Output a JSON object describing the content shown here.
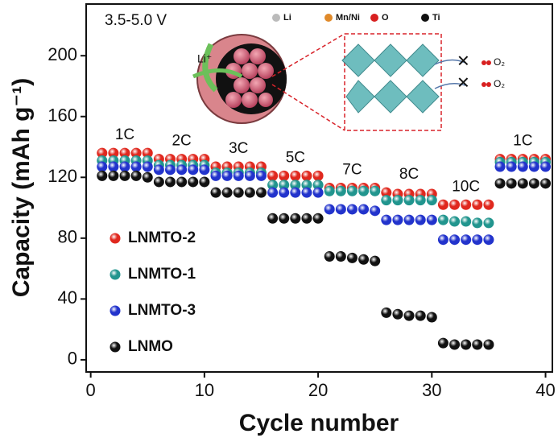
{
  "chart_data": {
    "type": "scatter",
    "annotation": "3.5-5.0 V",
    "x_label": "Cycle number",
    "y_label": "Capacity (mAh g⁻¹)",
    "inset_labels": {
      "elements": [
        "Li",
        "Mn/Ni",
        "O",
        "Ti"
      ],
      "ion": "Li⁺",
      "gas": "O₂"
    },
    "rate_labels": [
      "1C",
      "2C",
      "3C",
      "5C",
      "7C",
      "8C",
      "10C",
      "1C"
    ],
    "x": [
      1,
      2,
      3,
      4,
      5,
      6,
      7,
      8,
      9,
      10,
      11,
      12,
      13,
      14,
      15,
      16,
      17,
      18,
      19,
      20,
      21,
      22,
      23,
      24,
      25,
      26,
      27,
      28,
      29,
      30,
      31,
      32,
      33,
      34,
      35,
      36,
      37,
      38,
      39,
      40
    ],
    "xlim": [
      -0.4,
      40.6
    ],
    "xticks": [
      0,
      10,
      20,
      30,
      40
    ],
    "ylim": [
      -8,
      234
    ],
    "yticks": [
      0,
      40,
      80,
      120,
      160,
      200
    ],
    "legend": "left",
    "series": [
      {
        "name": "LNMTO-2",
        "color": "#e0281e",
        "values": [
          136,
          136,
          136,
          136,
          136,
          132,
          132,
          132,
          132,
          132,
          127,
          127,
          127,
          127,
          127,
          121,
          121,
          121,
          121,
          121,
          113,
          113,
          113,
          113,
          113,
          110,
          109,
          109,
          109,
          109,
          102,
          102,
          102,
          102,
          102,
          132,
          132,
          132,
          132,
          132
        ]
      },
      {
        "name": "LNMTO-1",
        "color": "#21958e",
        "values": [
          131,
          131,
          131,
          131,
          131,
          128,
          128,
          128,
          128,
          128,
          123,
          123,
          123,
          123,
          123,
          115,
          115,
          115,
          115,
          115,
          111,
          111,
          111,
          111,
          111,
          105,
          105,
          105,
          105,
          105,
          92,
          91,
          91,
          90,
          90,
          130,
          130,
          130,
          130,
          130
        ]
      },
      {
        "name": "LNMTO-3",
        "color": "#2233cc",
        "values": [
          127,
          127,
          127,
          127,
          127,
          125,
          125,
          125,
          125,
          125,
          121,
          121,
          121,
          121,
          121,
          110,
          110,
          110,
          110,
          110,
          99,
          99,
          99,
          99,
          98,
          92,
          92,
          92,
          92,
          92,
          79,
          79,
          79,
          79,
          79,
          127,
          127,
          127,
          127,
          127
        ]
      },
      {
        "name": "LNMO",
        "color": "#111111",
        "values": [
          121,
          121,
          121,
          121,
          120,
          117,
          117,
          117,
          117,
          117,
          110,
          110,
          110,
          110,
          110,
          93,
          93,
          93,
          93,
          93,
          68,
          68,
          67,
          66,
          65,
          31,
          30,
          29,
          29,
          28,
          11,
          10,
          10,
          10,
          10,
          116,
          116,
          116,
          116,
          116
        ]
      }
    ]
  }
}
